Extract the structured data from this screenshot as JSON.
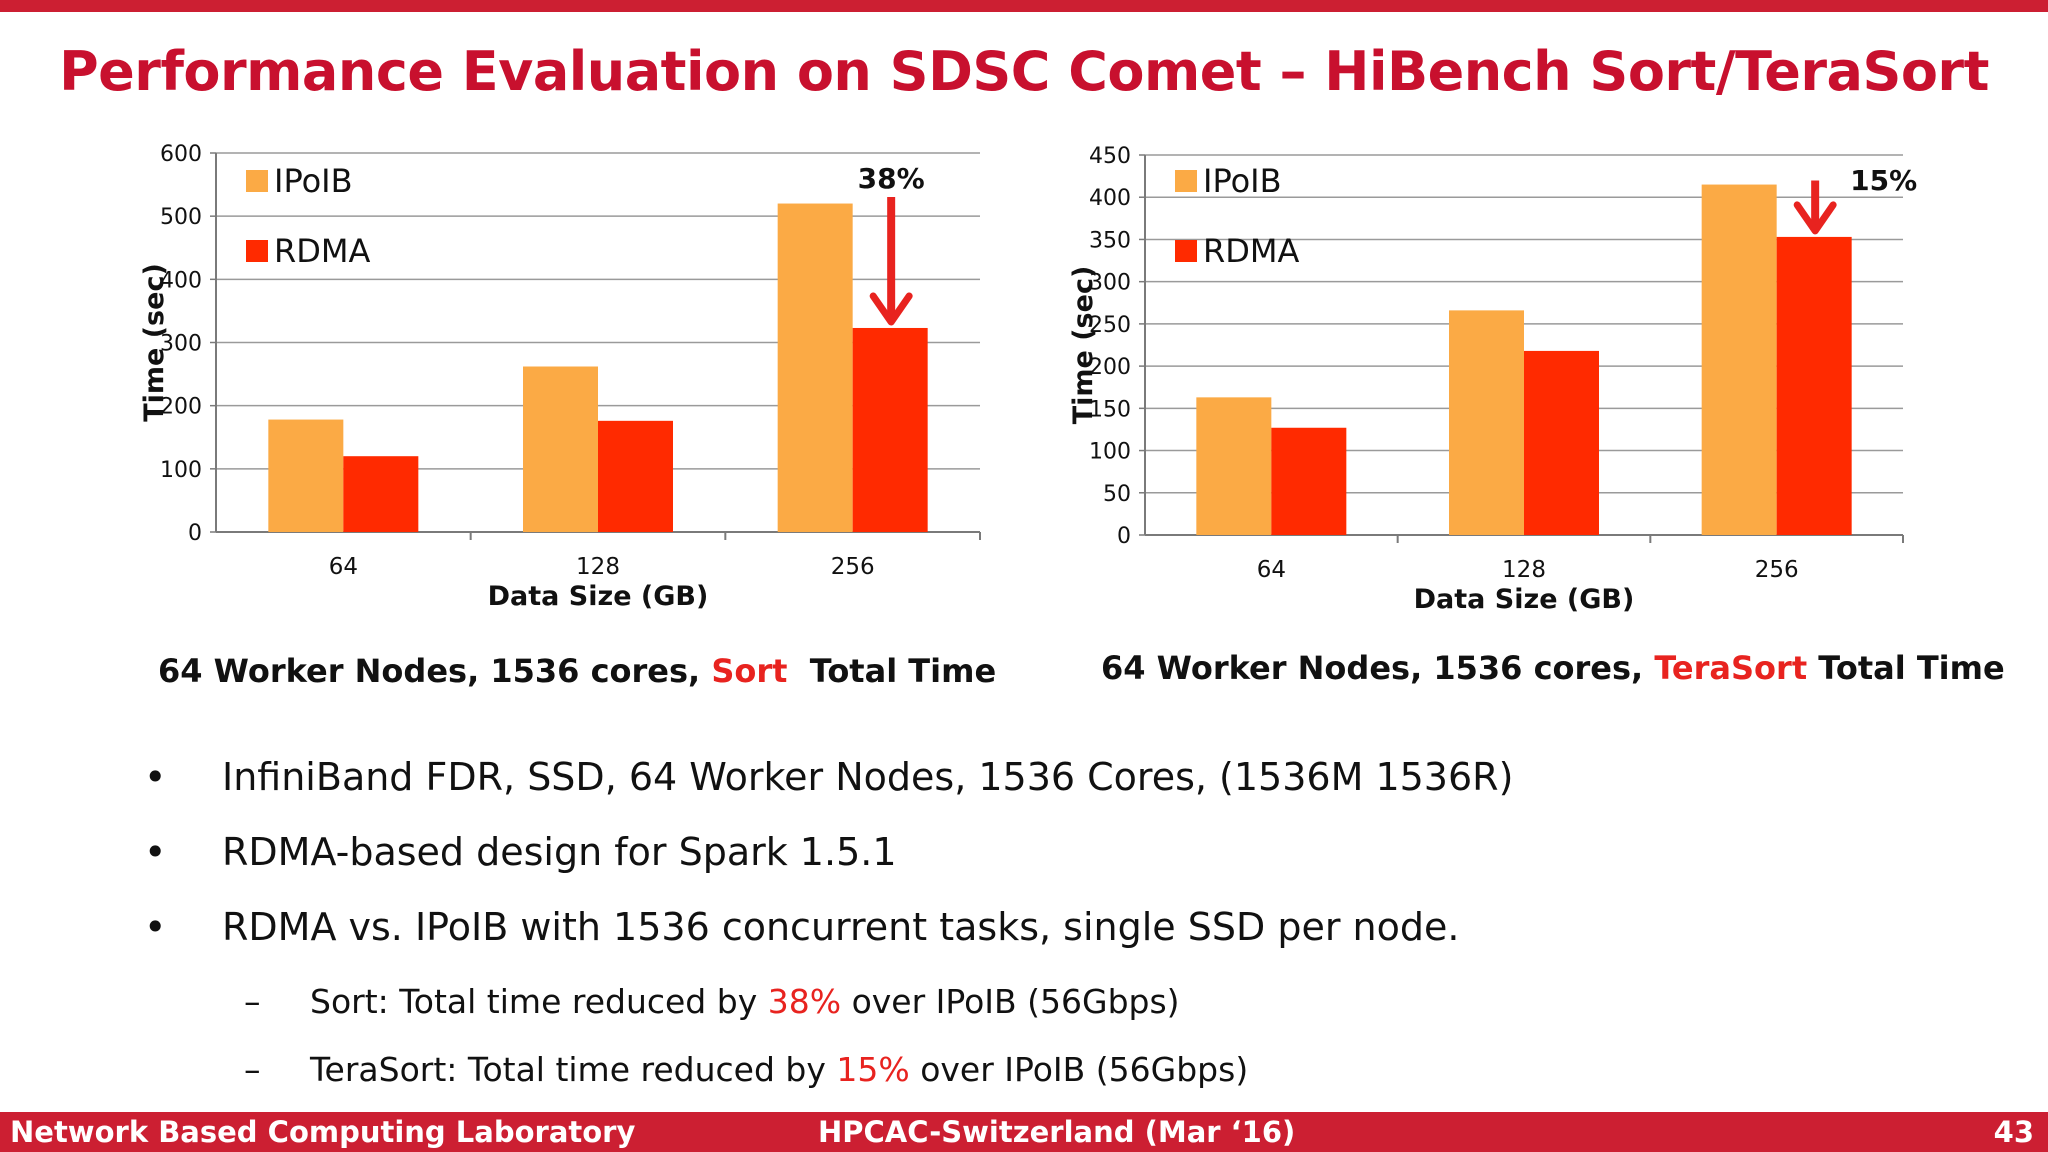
{
  "title": "Performance Evaluation on SDSC Comet – HiBench Sort/TeraSort",
  "colors": {
    "accent": "#c8102e",
    "ipoib": "#fbaa45",
    "rdma": "#ff2a00",
    "highlight": "#e8231f"
  },
  "chart_data": [
    {
      "type": "bar",
      "categories": [
        "64",
        "128",
        "256"
      ],
      "series": [
        {
          "name": "IPoIB",
          "values": [
            178,
            262,
            520
          ]
        },
        {
          "name": "RDMA",
          "values": [
            120,
            176,
            323
          ]
        }
      ],
      "xlabel": "Data Size (GB)",
      "ylabel": "Time (sec)",
      "ylim": [
        0,
        600
      ],
      "yticks": [
        "0",
        "100",
        "200",
        "300",
        "400",
        "500",
        "600"
      ],
      "grid": true,
      "legend": "top-left",
      "annotation": "38%",
      "caption": {
        "prefix": "64 Worker Nodes, 1536 cores, ",
        "highlight": "Sort",
        "suffix": "  Total Time"
      }
    },
    {
      "type": "bar",
      "categories": [
        "64",
        "128",
        "256"
      ],
      "series": [
        {
          "name": "IPoIB",
          "values": [
            163,
            266,
            415
          ]
        },
        {
          "name": "RDMA",
          "values": [
            127,
            218,
            353
          ]
        }
      ],
      "xlabel": "Data Size (GB)",
      "ylabel": "Time (sec)",
      "ylim": [
        0,
        450
      ],
      "yticks": [
        "0",
        "50",
        "100",
        "150",
        "200",
        "250",
        "300",
        "350",
        "400",
        "450"
      ],
      "grid": true,
      "legend": "top-left",
      "annotation": "15%",
      "caption": {
        "prefix": "64 Worker Nodes, 1536 cores, ",
        "highlight": "TeraSort",
        "suffix": " Total Time"
      }
    }
  ],
  "bullets": [
    "InfiniBand FDR, SSD, 64 Worker Nodes, 1536 Cores, (1536M 1536R)",
    "RDMA-based design for Spark 1.5.1",
    "RDMA vs. IPoIB with 1536 concurrent tasks, single SSD per node."
  ],
  "bullet_marker": "•",
  "sub_marker": "–",
  "sub_bullets": [
    {
      "prefix": "Sort: Total time reduced by ",
      "value": "38%",
      "suffix": " over IPoIB (56Gbps)"
    },
    {
      "prefix": "TeraSort: Total time reduced by ",
      "value": "15%",
      "suffix": " over IPoIB (56Gbps)"
    }
  ],
  "footer": {
    "left": "Network Based Computing Laboratory",
    "center": "HPCAC-Switzerland (Mar ‘16)",
    "page": "43"
  }
}
